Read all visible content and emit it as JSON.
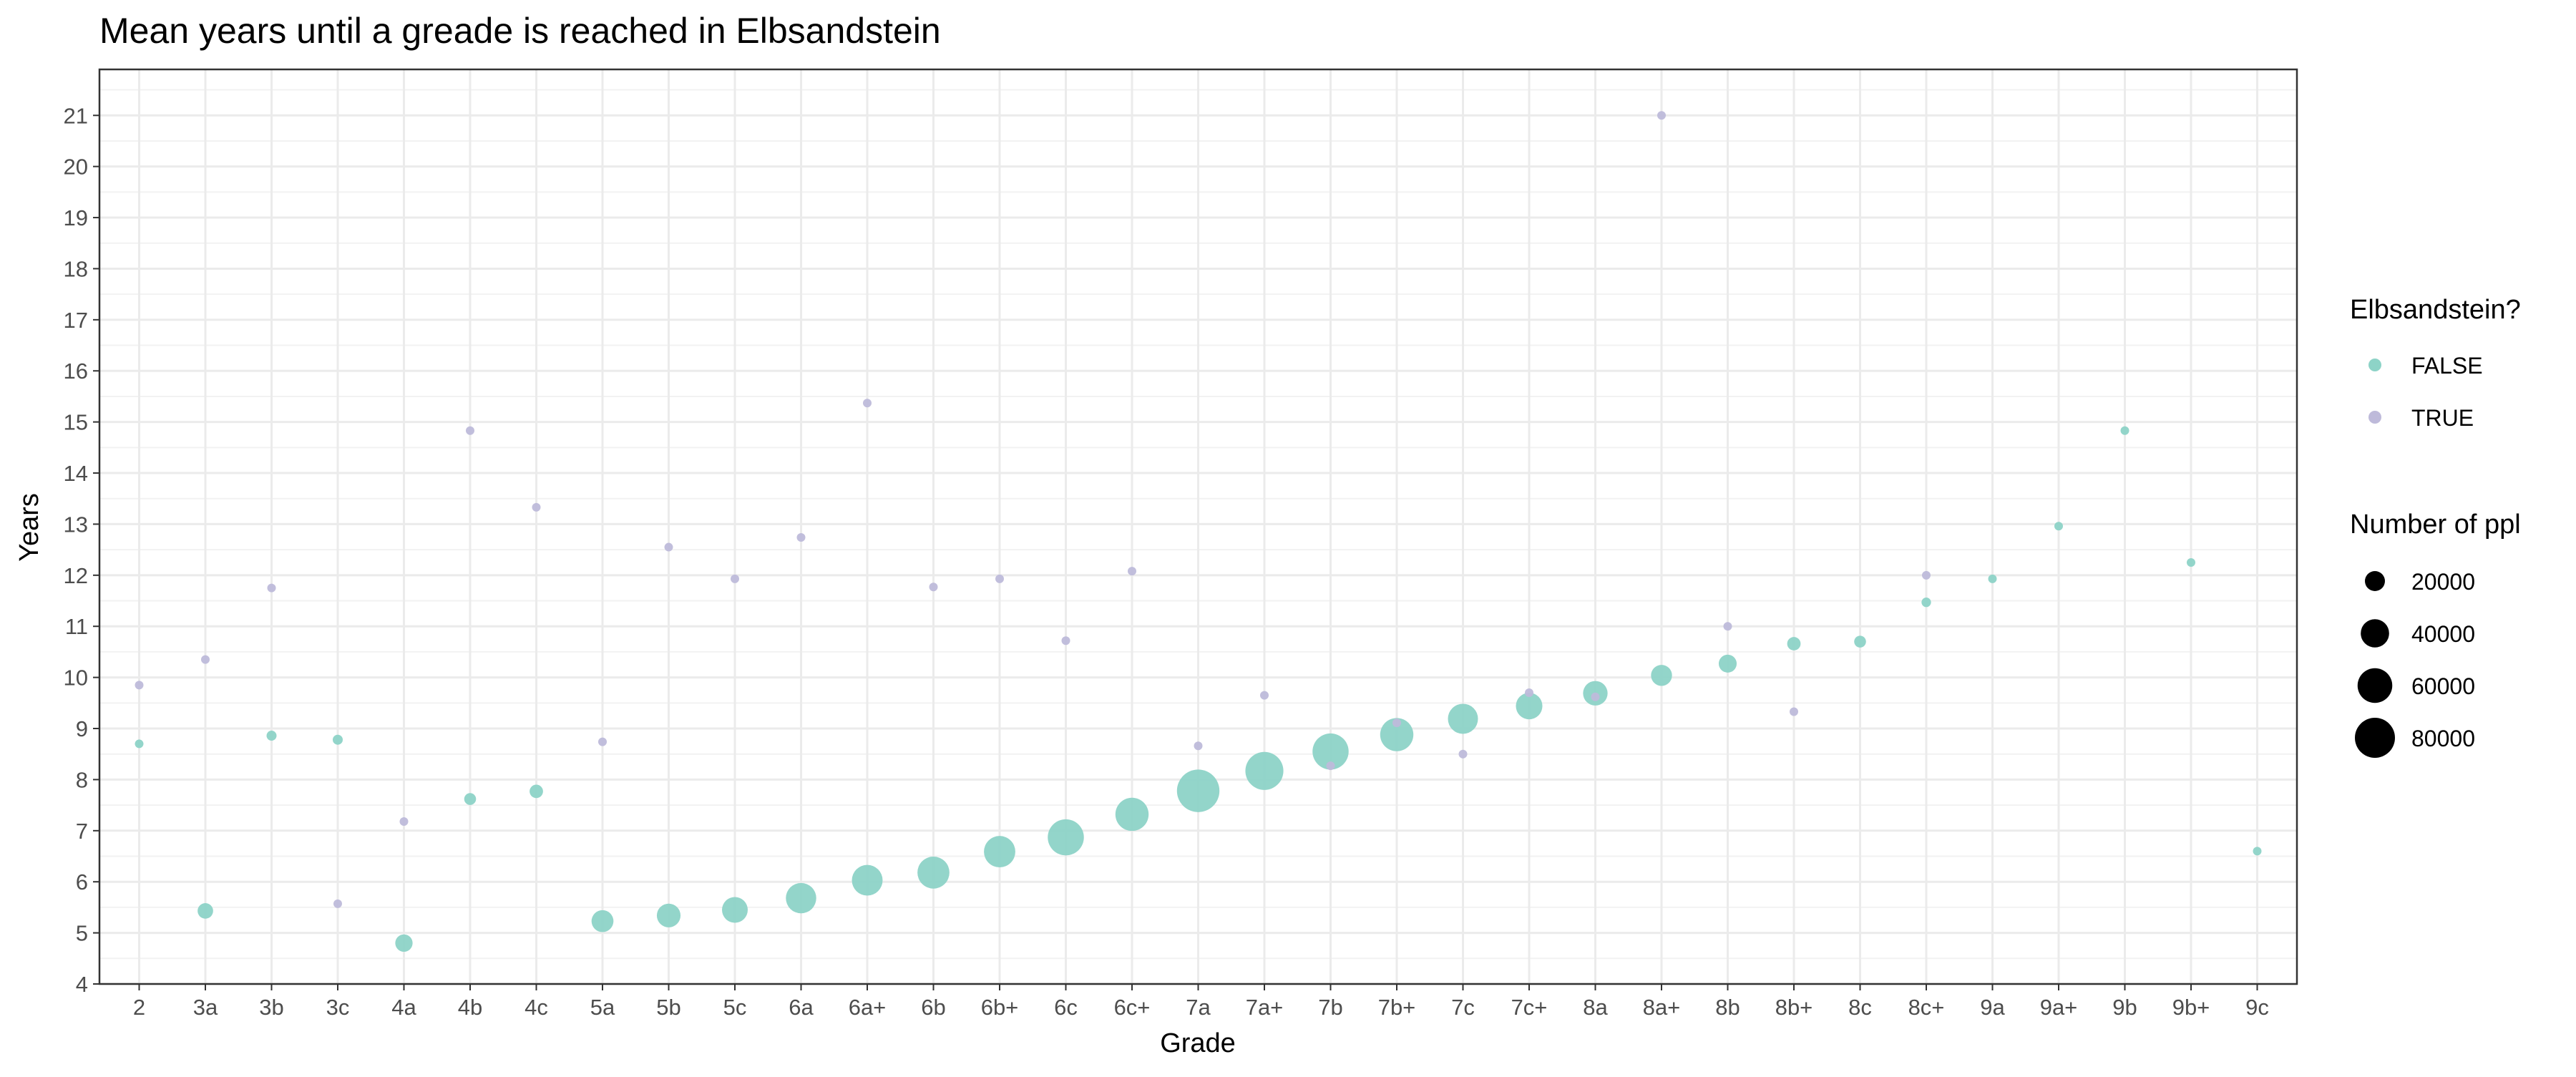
{
  "chart_data": {
    "type": "scatter",
    "title": "Mean years until a greade is reached in Elbsandstein",
    "xlabel": "Grade",
    "ylabel": "Years",
    "categories": [
      "2",
      "3a",
      "3b",
      "3c",
      "4a",
      "4b",
      "4c",
      "5a",
      "5b",
      "5c",
      "6a",
      "6a+",
      "6b",
      "6b+",
      "6c",
      "6c+",
      "7a",
      "7a+",
      "7b",
      "7b+",
      "7c",
      "7c+",
      "8a",
      "8a+",
      "8b",
      "8b+",
      "8c",
      "8c+",
      "9a",
      "9a+",
      "9b",
      "9b+",
      "9c"
    ],
    "ylim": [
      4,
      21.9
    ],
    "yticks": [
      4,
      5,
      6,
      7,
      8,
      9,
      10,
      11,
      12,
      13,
      14,
      15,
      16,
      17,
      18,
      19,
      20,
      21
    ],
    "grid": true,
    "legend_position": "right",
    "size_legend": {
      "title": "Number of ppl",
      "breaks": [
        20000,
        40000,
        60000,
        80000
      ],
      "labels": [
        "20000",
        "40000",
        "60000",
        "80000"
      ],
      "color": "#000000"
    },
    "color_legend": {
      "title": "Elbsandstein?"
    },
    "series": [
      {
        "name": "FALSE",
        "color": "#8DD3C7",
        "points": [
          {
            "x": "2",
            "y": 8.7,
            "n": 3000
          },
          {
            "x": "3a",
            "y": 5.43,
            "n": 12000
          },
          {
            "x": "3b",
            "y": 8.86,
            "n": 5000
          },
          {
            "x": "3c",
            "y": 8.78,
            "n": 5000
          },
          {
            "x": "4a",
            "y": 4.8,
            "n": 15000
          },
          {
            "x": "4b",
            "y": 7.62,
            "n": 7000
          },
          {
            "x": "4c",
            "y": 7.77,
            "n": 9000
          },
          {
            "x": "5a",
            "y": 5.23,
            "n": 24000
          },
          {
            "x": "5b",
            "y": 5.34,
            "n": 28000
          },
          {
            "x": "5c",
            "y": 5.45,
            "n": 33000
          },
          {
            "x": "6a",
            "y": 5.68,
            "n": 46000
          },
          {
            "x": "6a+",
            "y": 6.03,
            "n": 47000
          },
          {
            "x": "6b",
            "y": 6.18,
            "n": 51000
          },
          {
            "x": "6b+",
            "y": 6.59,
            "n": 49000
          },
          {
            "x": "6c",
            "y": 6.87,
            "n": 65000
          },
          {
            "x": "6c+",
            "y": 7.32,
            "n": 55000
          },
          {
            "x": "7a",
            "y": 7.78,
            "n": 90000
          },
          {
            "x": "7a+",
            "y": 8.17,
            "n": 72000
          },
          {
            "x": "7b",
            "y": 8.55,
            "n": 65000
          },
          {
            "x": "7b+",
            "y": 8.88,
            "n": 55000
          },
          {
            "x": "7c",
            "y": 9.19,
            "n": 45000
          },
          {
            "x": "7c+",
            "y": 9.44,
            "n": 35000
          },
          {
            "x": "8a",
            "y": 9.69,
            "n": 30000
          },
          {
            "x": "8a+",
            "y": 10.04,
            "n": 22000
          },
          {
            "x": "8b",
            "y": 10.27,
            "n": 16000
          },
          {
            "x": "8b+",
            "y": 10.66,
            "n": 9000
          },
          {
            "x": "8c",
            "y": 10.7,
            "n": 7000
          },
          {
            "x": "8c+",
            "y": 11.47,
            "n": 4500
          },
          {
            "x": "9a",
            "y": 11.93,
            "n": 3500
          },
          {
            "x": "9a+",
            "y": 12.96,
            "n": 2500
          },
          {
            "x": "9b",
            "y": 14.83,
            "n": 2000
          },
          {
            "x": "9b+",
            "y": 12.25,
            "n": 2000
          },
          {
            "x": "9c",
            "y": 6.6,
            "n": 1500
          }
        ]
      },
      {
        "name": "TRUE",
        "color": "#BEBADA",
        "points": [
          {
            "x": "2",
            "y": 9.85,
            "n": 2000
          },
          {
            "x": "3a",
            "y": 10.35,
            "n": 2000
          },
          {
            "x": "3b",
            "y": 11.75,
            "n": 2000
          },
          {
            "x": "3c",
            "y": 5.57,
            "n": 2000
          },
          {
            "x": "4a",
            "y": 7.18,
            "n": 2000
          },
          {
            "x": "4b",
            "y": 14.83,
            "n": 2000
          },
          {
            "x": "4c",
            "y": 13.33,
            "n": 2000
          },
          {
            "x": "5a",
            "y": 8.74,
            "n": 2000
          },
          {
            "x": "5b",
            "y": 12.55,
            "n": 2000
          },
          {
            "x": "5c",
            "y": 11.93,
            "n": 2000
          },
          {
            "x": "6a",
            "y": 12.74,
            "n": 2000
          },
          {
            "x": "6a+",
            "y": 15.37,
            "n": 2000
          },
          {
            "x": "6b",
            "y": 11.77,
            "n": 2000
          },
          {
            "x": "6b+",
            "y": 11.93,
            "n": 2000
          },
          {
            "x": "6c",
            "y": 10.72,
            "n": 2000
          },
          {
            "x": "6c+",
            "y": 12.08,
            "n": 2000
          },
          {
            "x": "7a",
            "y": 8.66,
            "n": 2000
          },
          {
            "x": "7a+",
            "y": 9.65,
            "n": 2000
          },
          {
            "x": "7b",
            "y": 8.27,
            "n": 2000
          },
          {
            "x": "7b+",
            "y": 9.11,
            "n": 2000
          },
          {
            "x": "7c",
            "y": 8.5,
            "n": 2000
          },
          {
            "x": "7c+",
            "y": 9.7,
            "n": 2000
          },
          {
            "x": "8a",
            "y": 9.62,
            "n": 2000
          },
          {
            "x": "8a+",
            "y": 21.0,
            "n": 2000
          },
          {
            "x": "8b",
            "y": 11.0,
            "n": 2000
          },
          {
            "x": "8b+",
            "y": 9.33,
            "n": 2000
          },
          {
            "x": "8c+",
            "y": 12.0,
            "n": 2000
          }
        ]
      }
    ]
  }
}
